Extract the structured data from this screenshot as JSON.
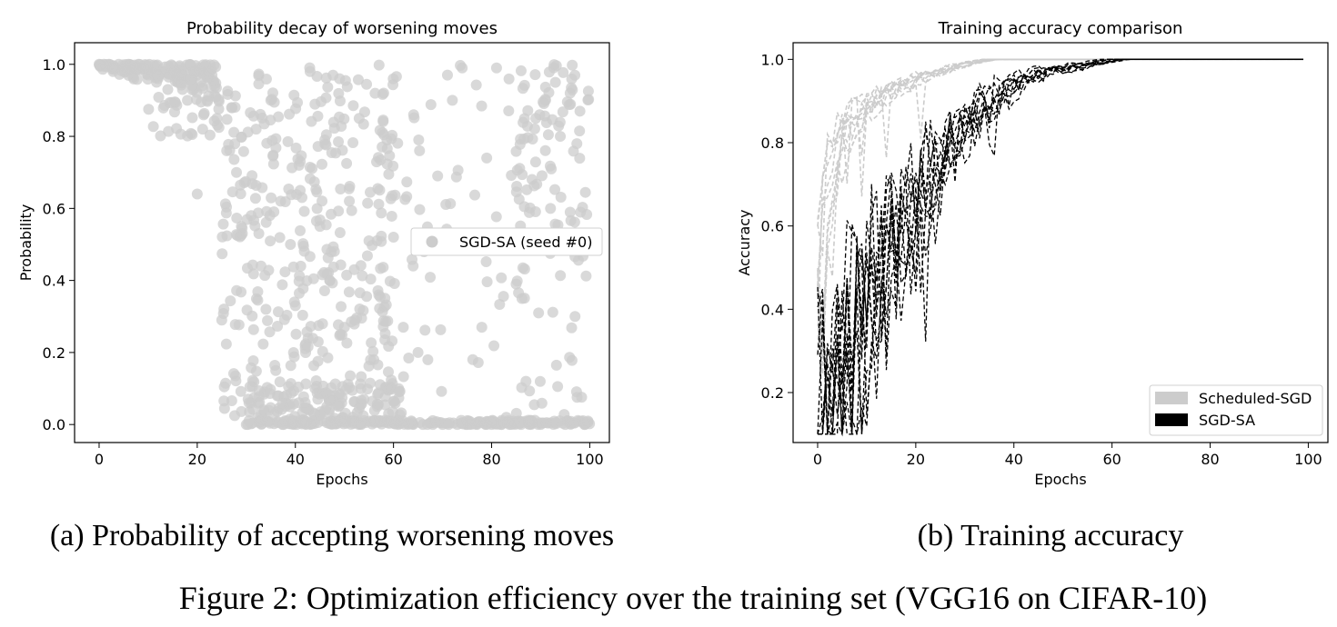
{
  "figure_caption": "Figure 2: Optimization efficiency over the training set (VGG16 on CIFAR-10)",
  "colors": {
    "scheduled": "#cccccc",
    "sgdsa": "#000000",
    "scatter": "#cccccc"
  },
  "chart_data": [
    {
      "type": "scatter",
      "title": "Probability decay of worsening moves",
      "xlabel": "Epochs",
      "ylabel": "Probability",
      "xlim": [
        -5,
        104
      ],
      "ylim": [
        -0.05,
        1.06
      ],
      "xticks": [
        0,
        20,
        40,
        60,
        80,
        100
      ],
      "yticks": [
        0.0,
        0.2,
        0.4,
        0.6,
        0.8,
        1.0
      ],
      "ytick_labels": [
        "0.0",
        "0.2",
        "0.4",
        "0.6",
        "0.8",
        "1.0"
      ],
      "legend": {
        "placement": "center-right",
        "entries": [
          "SGD-SA (seed #0)"
        ]
      },
      "caption": "(a) Probability of accepting worsening moves",
      "series": [
        {
          "name": "SGD-SA (seed #0)",
          "description": "approximate density of acceptance probabilities per epoch: near 1.0 for epochs 0-24, spread 0-1 for 25-60, mostly 0 after 60 with a sparse band near 1.0 for 88-100",
          "samples": [
            [
              0,
              1.0
            ],
            [
              1,
              1.0
            ],
            [
              2,
              1.0
            ],
            [
              3,
              0.99
            ],
            [
              4,
              1.0
            ],
            [
              5,
              0.99
            ],
            [
              6,
              1.0
            ],
            [
              7,
              0.98
            ],
            [
              8,
              1.0
            ],
            [
              9,
              0.99
            ],
            [
              10,
              0.97
            ],
            [
              11,
              0.99
            ],
            [
              12,
              0.96
            ],
            [
              13,
              0.98
            ],
            [
              14,
              0.93
            ],
            [
              15,
              0.97
            ],
            [
              16,
              0.95
            ],
            [
              17,
              0.93
            ],
            [
              18,
              0.9
            ],
            [
              19,
              0.96
            ],
            [
              20,
              0.64
            ],
            [
              21,
              0.94
            ],
            [
              22,
              0.9
            ],
            [
              23,
              0.97
            ],
            [
              24,
              0.85
            ],
            [
              25,
              0.29
            ],
            [
              26,
              0.76
            ],
            [
              27,
              0.88
            ],
            [
              28,
              0.7
            ],
            [
              29,
              0.55
            ],
            [
              30,
              0.0
            ],
            [
              31,
              0.58
            ],
            [
              32,
              0.82
            ],
            [
              33,
              0.44
            ],
            [
              34,
              0.32
            ],
            [
              35,
              0.9
            ],
            [
              36,
              0.15
            ],
            [
              37,
              0.62
            ],
            [
              38,
              0.05
            ],
            [
              39,
              0.5
            ],
            [
              40,
              0.33
            ],
            [
              41,
              0.73
            ],
            [
              42,
              0.22
            ],
            [
              43,
              0.98
            ],
            [
              44,
              0.1
            ],
            [
              45,
              0.55
            ],
            [
              46,
              0.79
            ],
            [
              47,
              0.4
            ],
            [
              48,
              0.01
            ],
            [
              49,
              0.96
            ],
            [
              50,
              0.27
            ],
            [
              51,
              0.62
            ],
            [
              52,
              0.43
            ],
            [
              53,
              0.85
            ],
            [
              54,
              0.07
            ],
            [
              55,
              0.51
            ],
            [
              56,
              0.18
            ],
            [
              57,
              0.36
            ],
            [
              58,
              0.92
            ],
            [
              59,
              0.03
            ],
            [
              60,
              0.52
            ],
            [
              61,
              0.0
            ],
            [
              62,
              0.27
            ],
            [
              63,
              0.0
            ],
            [
              64,
              0.44
            ],
            [
              65,
              0.2
            ],
            [
              66,
              0.0
            ],
            [
              67,
              0.18
            ],
            [
              68,
              0.0
            ],
            [
              69,
              0.69
            ],
            [
              70,
              0.0
            ],
            [
              71,
              0.97
            ],
            [
              72,
              0.9
            ],
            [
              73,
              0.0
            ],
            [
              74,
              0.99
            ],
            [
              75,
              0.0
            ],
            [
              76,
              0.52
            ],
            [
              77,
              0.0
            ],
            [
              78,
              0.27
            ],
            [
              79,
              0.74
            ],
            [
              80,
              0.0
            ],
            [
              81,
              0.99
            ],
            [
              82,
              0.0
            ],
            [
              83,
              0.02
            ],
            [
              84,
              0.0
            ],
            [
              85,
              0.39
            ],
            [
              86,
              0.0
            ],
            [
              87,
              0.12
            ],
            [
              88,
              0.0
            ],
            [
              89,
              0.85
            ],
            [
              90,
              0.0
            ],
            [
              91,
              0.9
            ],
            [
              92,
              0.6
            ],
            [
              93,
              0.95
            ],
            [
              94,
              0.8
            ],
            [
              95,
              0.0
            ],
            [
              96,
              0.92
            ],
            [
              97,
              0.3
            ],
            [
              98,
              0.87
            ],
            [
              99,
              0.0
            ]
          ]
        }
      ]
    },
    {
      "type": "line",
      "title": "Training accuracy comparison",
      "xlabel": "Epochs",
      "ylabel": "Accuracy",
      "xlim": [
        -5,
        104
      ],
      "ylim": [
        0.08,
        1.04
      ],
      "xticks": [
        0,
        20,
        40,
        60,
        80,
        100
      ],
      "yticks": [
        0.2,
        0.4,
        0.6,
        0.8,
        1.0
      ],
      "legend": {
        "placement": "lower-right",
        "entries": [
          "Scheduled-SGD",
          "SGD-SA"
        ]
      },
      "caption": "(b) Training accuracy",
      "series": [
        {
          "name": "Scheduled-SGD",
          "style": "dashed",
          "description": "ten runs rising from about 0.4 at epoch 0 to about 0.9 by epoch 10 and 1.0 by epoch 30",
          "x": [
            0,
            1,
            2,
            3,
            4,
            5,
            6,
            8,
            10,
            12,
            15,
            18,
            21,
            24,
            27,
            30,
            35,
            40,
            50,
            60,
            70,
            80,
            90,
            99
          ],
          "y": [
            0.4,
            0.6,
            0.7,
            0.76,
            0.8,
            0.83,
            0.85,
            0.88,
            0.89,
            0.91,
            0.93,
            0.94,
            0.96,
            0.97,
            0.98,
            0.99,
            1.0,
            1.0,
            1.0,
            1.0,
            1.0,
            1.0,
            1.0,
            1.0
          ]
        },
        {
          "name": "SGD-SA",
          "style": "dashed",
          "description": "ten runs rising from about 0.15 at epoch 0, with noisy dips, to about 0.95 by epoch 40 and 1.0 by epoch 55",
          "x": [
            0,
            2,
            4,
            6,
            8,
            10,
            12,
            14,
            16,
            18,
            20,
            22,
            24,
            26,
            28,
            30,
            32,
            34,
            36,
            38,
            40,
            45,
            50,
            55,
            60,
            70,
            80,
            90,
            99
          ],
          "y": [
            0.15,
            0.2,
            0.25,
            0.33,
            0.4,
            0.45,
            0.5,
            0.55,
            0.6,
            0.65,
            0.7,
            0.74,
            0.77,
            0.8,
            0.83,
            0.86,
            0.88,
            0.9,
            0.92,
            0.94,
            0.95,
            0.97,
            0.98,
            0.99,
            1.0,
            1.0,
            1.0,
            1.0,
            1.0
          ]
        }
      ]
    }
  ]
}
